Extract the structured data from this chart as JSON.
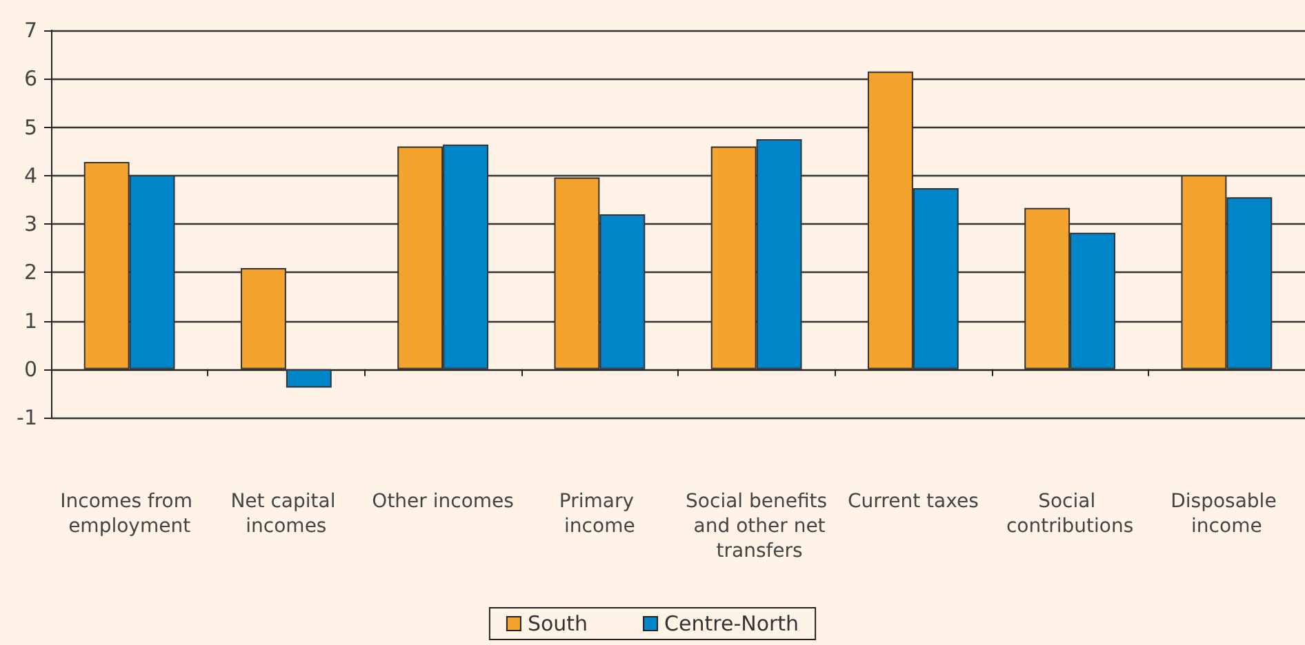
{
  "chart_data": {
    "type": "bar",
    "categories": [
      "Incomes from employment",
      "Net capital incomes",
      "Other incomes",
      "Primary income",
      "Social benefits and other net transfers",
      "Current taxes",
      "Social contributions",
      "Disposable income"
    ],
    "series": [
      {
        "name": "South",
        "color": "#f3a32e",
        "values": [
          4.28,
          2.09,
          4.6,
          3.96,
          4.6,
          6.15,
          3.33,
          4.01
        ]
      },
      {
        "name": "Centre-North",
        "color": "#0085c8",
        "values": [
          4.01,
          -0.38,
          4.64,
          3.2,
          4.75,
          3.74,
          2.82,
          3.55
        ]
      }
    ],
    "ylim": [
      -1,
      7
    ],
    "yticks": [
      -1,
      0,
      1,
      2,
      3,
      4,
      5,
      6,
      7
    ],
    "grid": "y",
    "legend": "bottom"
  }
}
